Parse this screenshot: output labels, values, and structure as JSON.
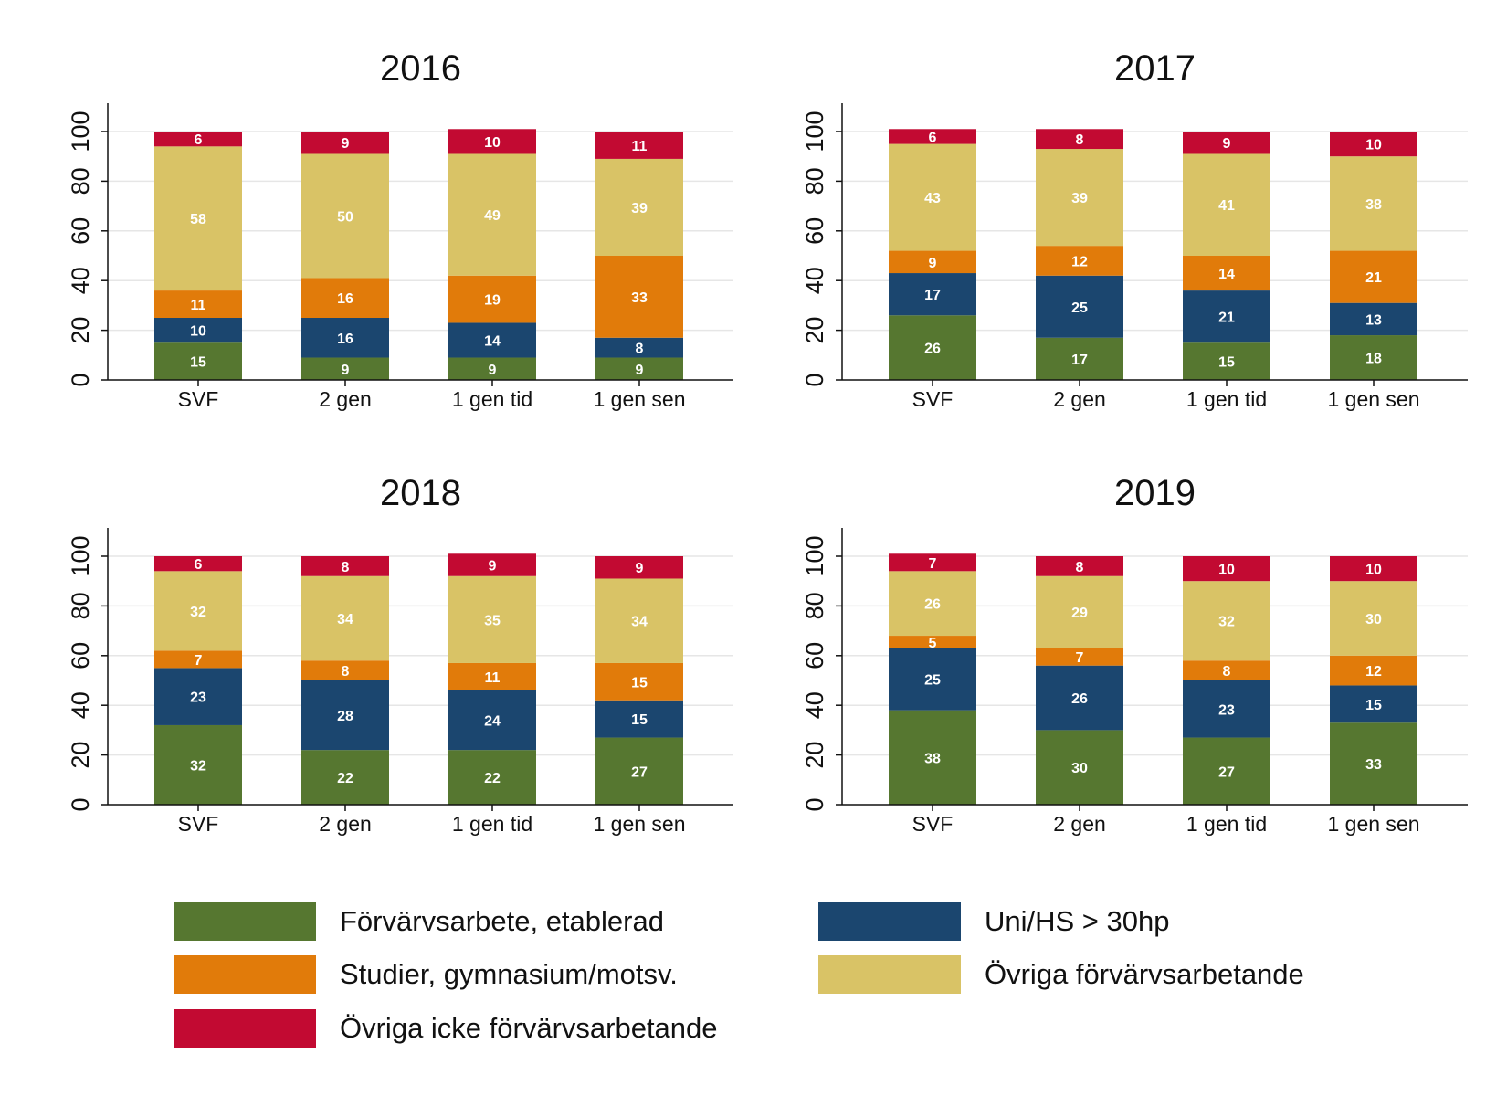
{
  "chart_data": [
    {
      "type": "bar",
      "stacked": true,
      "title": "2016",
      "categories": [
        "SVF",
        "2 gen",
        "1 gen tid",
        "1 gen sen"
      ],
      "ylim": [
        0,
        100
      ],
      "yticks": [
        "0",
        "20",
        "40",
        "60",
        "80",
        "100"
      ],
      "grid": true,
      "series": [
        {
          "name": "Förvärvsarbete, etablerad",
          "values": [
            15,
            9,
            9,
            9
          ]
        },
        {
          "name": "Uni/HS > 30hp",
          "values": [
            10,
            16,
            14,
            8
          ]
        },
        {
          "name": "Studier, gymnasium/motsv.",
          "values": [
            11,
            16,
            19,
            33
          ]
        },
        {
          "name": "Övriga förvärvsarbetande",
          "values": [
            58,
            50,
            49,
            39
          ]
        },
        {
          "name": "Övriga icke förvärvsarbetande",
          "values": [
            6,
            9,
            10,
            11
          ]
        }
      ]
    },
    {
      "type": "bar",
      "stacked": true,
      "title": "2017",
      "categories": [
        "SVF",
        "2 gen",
        "1 gen tid",
        "1 gen sen"
      ],
      "ylim": [
        0,
        100
      ],
      "yticks": [
        "0",
        "20",
        "40",
        "60",
        "80",
        "100"
      ],
      "grid": true,
      "series": [
        {
          "name": "Förvärvsarbete, etablerad",
          "values": [
            26,
            17,
            15,
            18
          ]
        },
        {
          "name": "Uni/HS > 30hp",
          "values": [
            17,
            25,
            21,
            13
          ]
        },
        {
          "name": "Studier, gymnasium/motsv.",
          "values": [
            9,
            12,
            14,
            21
          ]
        },
        {
          "name": "Övriga förvärvsarbetande",
          "values": [
            43,
            39,
            41,
            38
          ]
        },
        {
          "name": "Övriga icke förvärvsarbetande",
          "values": [
            6,
            8,
            9,
            10
          ]
        }
      ]
    },
    {
      "type": "bar",
      "stacked": true,
      "title": "2018",
      "categories": [
        "SVF",
        "2 gen",
        "1 gen tid",
        "1 gen sen"
      ],
      "ylim": [
        0,
        100
      ],
      "yticks": [
        "0",
        "20",
        "40",
        "60",
        "80",
        "100"
      ],
      "grid": true,
      "series": [
        {
          "name": "Förvärvsarbete, etablerad",
          "values": [
            32,
            22,
            22,
            27
          ]
        },
        {
          "name": "Uni/HS > 30hp",
          "values": [
            23,
            28,
            24,
            15
          ]
        },
        {
          "name": "Studier, gymnasium/motsv.",
          "values": [
            7,
            8,
            11,
            15
          ]
        },
        {
          "name": "Övriga förvärvsarbetande",
          "values": [
            32,
            34,
            35,
            34
          ]
        },
        {
          "name": "Övriga icke förvärvsarbetande",
          "values": [
            6,
            8,
            9,
            9
          ]
        }
      ]
    },
    {
      "type": "bar",
      "stacked": true,
      "title": "2019",
      "categories": [
        "SVF",
        "2 gen",
        "1 gen tid",
        "1 gen sen"
      ],
      "ylim": [
        0,
        100
      ],
      "yticks": [
        "0",
        "20",
        "40",
        "60",
        "80",
        "100"
      ],
      "grid": true,
      "series": [
        {
          "name": "Förvärvsarbete, etablerad",
          "values": [
            38,
            30,
            27,
            33
          ]
        },
        {
          "name": "Uni/HS > 30hp",
          "values": [
            25,
            26,
            23,
            15
          ]
        },
        {
          "name": "Studier, gymnasium/motsv.",
          "values": [
            5,
            7,
            8,
            12
          ]
        },
        {
          "name": "Övriga förvärvsarbetande",
          "values": [
            26,
            29,
            32,
            30
          ]
        },
        {
          "name": "Övriga icke förvärvsarbetande",
          "values": [
            7,
            8,
            10,
            10
          ]
        }
      ]
    }
  ],
  "colors": {
    "Förvärvsarbete, etablerad": "#567730",
    "Uni/HS > 30hp": "#1b466f",
    "Studier, gymnasium/motsv.": "#e17b0a",
    "Övriga förvärvsarbetande": "#d9c366",
    "Övriga icke förvärvsarbetande": "#c20a32"
  },
  "legend": {
    "placement": "bottom",
    "items": [
      {
        "label": "Förvärvsarbete, etablerad",
        "color": "#567730"
      },
      {
        "label": "Uni/HS > 30hp",
        "color": "#1b466f"
      },
      {
        "label": "Studier, gymnasium/motsv.",
        "color": "#e17b0a"
      },
      {
        "label": "Övriga förvärvsarbetande",
        "color": "#d9c366"
      },
      {
        "label": "Övriga icke förvärvsarbetande",
        "color": "#c20a32"
      }
    ]
  }
}
